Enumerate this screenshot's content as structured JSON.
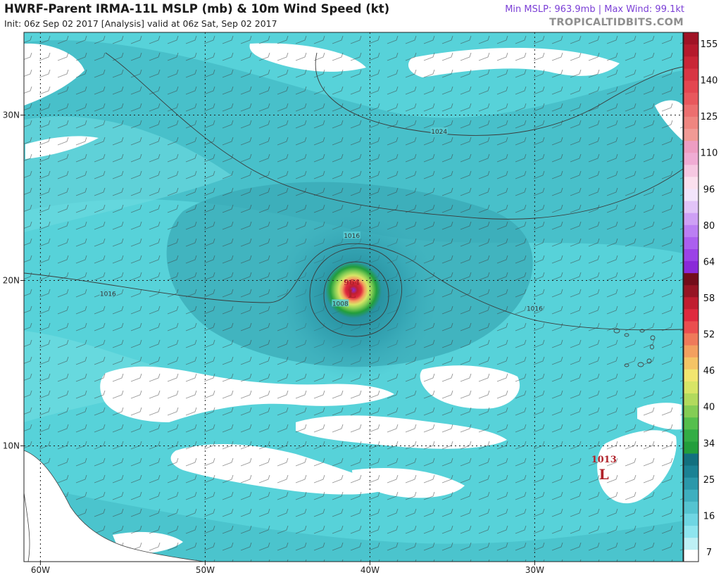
{
  "header": {
    "title": "HWRF-Parent IRMA-11L MSLP (mb) & 10m Wind Speed (kt)",
    "subtitle": "Init: 06z Sep 02 2017   [Analysis]   valid at 06z Sat, Sep 02 2017",
    "stats": "Min MSLP: 963.9mb | Max Wind: 99.1kt",
    "site": "TROPICALTIDBITS.COM",
    "stats_color": "#7b3fd6"
  },
  "map": {
    "lon_range": [
      -61,
      -21
    ],
    "lat_range": [
      3,
      35
    ],
    "longitudes": [
      -60,
      -50,
      -40,
      -30
    ],
    "latitudes": [
      30,
      20,
      10
    ],
    "lon_labels": [
      "60W",
      "50W",
      "40W",
      "30W"
    ],
    "lat_labels": [
      "30N",
      "20N",
      "10N"
    ],
    "ocean_color": "#57d2d9",
    "isobar_labels": [
      {
        "text": "1024",
        "lon": -35.8,
        "lat": 29.0
      },
      {
        "text": "1016",
        "lon": -41.1,
        "lat": 22.7
      },
      {
        "text": "1016",
        "lon": -55.9,
        "lat": 19.2
      },
      {
        "text": "1016",
        "lon": -30.0,
        "lat": 18.3
      },
      {
        "text": "1008",
        "lon": -41.8,
        "lat": 18.6
      }
    ],
    "centers": [
      {
        "pressure": "964",
        "symbol": "L",
        "lon": -41.1,
        "lat": 19.3,
        "type": "hurricane"
      },
      {
        "pressure": "1013",
        "symbol": "L",
        "lon": -25.8,
        "lat": 8.5,
        "type": "low"
      }
    ]
  },
  "colorbar": {
    "labels": [
      "155",
      "140",
      "125",
      "110",
      "96",
      "80",
      "64",
      "58",
      "52",
      "46",
      "40",
      "34",
      "25",
      "16",
      "7"
    ],
    "colors": [
      "#ffffff",
      "#bef0f5",
      "#8ee5ef",
      "#6fd6e3",
      "#55c4d1",
      "#3eafbf",
      "#2b98aa",
      "#1b8294",
      "#12707f",
      "#229e3c",
      "#33ad45",
      "#55bf4d",
      "#84cd55",
      "#b2da5d",
      "#d8e566",
      "#f2e66f",
      "#f5c465",
      "#f3a05f",
      "#ef7a5a",
      "#ea4e4f",
      "#df2a3e",
      "#c01e30",
      "#961524",
      "#730d1a",
      "#8a2ad8",
      "#9b42e6",
      "#ab5fef",
      "#bb7ff3",
      "#cea0f5",
      "#e2c4f8",
      "#f3e4fb",
      "#fbe0ee",
      "#f6c8e2",
      "#f0acd4",
      "#ee9dc2",
      "#f19a95",
      "#ef8680",
      "#ec6f6f",
      "#e8585d",
      "#e34650",
      "#d83543",
      "#c92636",
      "#b51a2c",
      "#a01325"
    ]
  },
  "unit_wind": "kt",
  "unit_pressure": "mb"
}
